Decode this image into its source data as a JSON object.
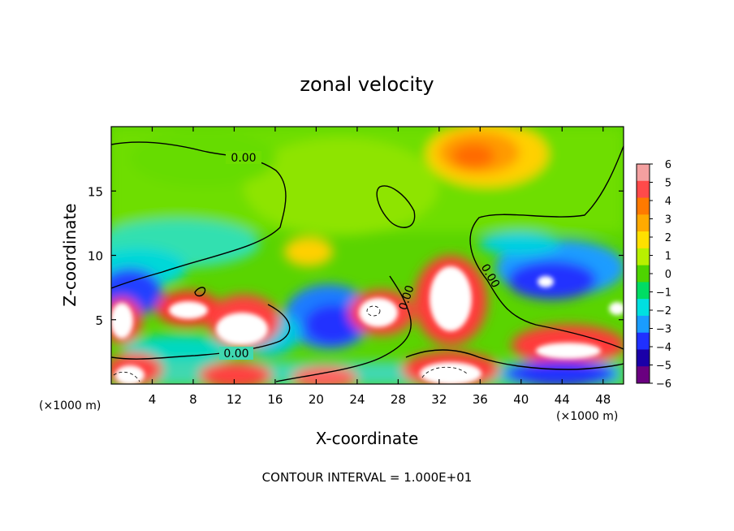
{
  "chart_data": {
    "type": "heatmap",
    "title": "zonal velocity",
    "xlabel": "X-coordinate",
    "ylabel": "Z-coordinate",
    "x_unit_left": "(×1000 m)",
    "x_unit_right": "(×1000 m)",
    "xlim": [
      0,
      50
    ],
    "ylim": [
      0,
      20
    ],
    "x_ticks": [
      "4",
      "8",
      "12",
      "16",
      "20",
      "24",
      "28",
      "32",
      "36",
      "40",
      "44",
      "48"
    ],
    "y_ticks": [
      "5",
      "10",
      "15"
    ],
    "colorbar": {
      "ticks": [
        "6",
        "5",
        "4",
        "3",
        "2",
        "1",
        "0",
        "−1",
        "−2",
        "−3",
        "−4",
        "−5",
        "−6"
      ],
      "colors": [
        "#f4a0a0",
        "#ff4a4a",
        "#ff7a00",
        "#ffaa00",
        "#ffe000",
        "#b8f000",
        "#4ed400",
        "#00dc64",
        "#00e0e0",
        "#1a9cff",
        "#2030ff",
        "#1a00a8",
        "#6a0080"
      ]
    },
    "contour_labels": [
      "0.00",
      "0.00",
      "0.00",
      "0.00"
    ],
    "footer": "CONTOUR INTERVAL = 1.000E+01"
  }
}
